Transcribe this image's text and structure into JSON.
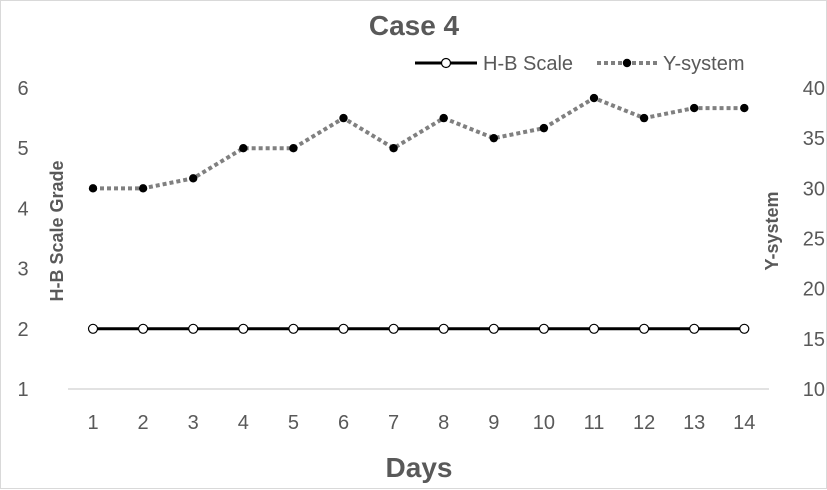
{
  "chart_data": {
    "type": "line",
    "title": "Case 4",
    "xlabel": "Days",
    "ylabel": "H-B Scale Grade",
    "y2label": "Y-system",
    "categories": [
      "1",
      "2",
      "3",
      "4",
      "5",
      "6",
      "7",
      "8",
      "9",
      "10",
      "11",
      "12",
      "13",
      "14"
    ],
    "ylim": [
      1,
      6
    ],
    "y2lim": [
      10,
      40
    ],
    "yticks": [
      "1",
      "2",
      "3",
      "4",
      "5",
      "6"
    ],
    "y2ticks": [
      "10",
      "15",
      "20",
      "25",
      "30",
      "35",
      "40"
    ],
    "grid": false,
    "legend_position": "top-right",
    "series": [
      {
        "name": "H-B Scale",
        "axis": "left",
        "style": "solid",
        "marker": "open-circle",
        "color": "#000000",
        "values": [
          2,
          2,
          2,
          2,
          2,
          2,
          2,
          2,
          2,
          2,
          2,
          2,
          2,
          2
        ]
      },
      {
        "name": "Y-system",
        "axis": "right",
        "style": "dotted",
        "marker": "filled-circle",
        "color": "#808080",
        "values": [
          30,
          30,
          31,
          34,
          34,
          37,
          34,
          37,
          35,
          36,
          39,
          37,
          38,
          38
        ]
      }
    ]
  }
}
